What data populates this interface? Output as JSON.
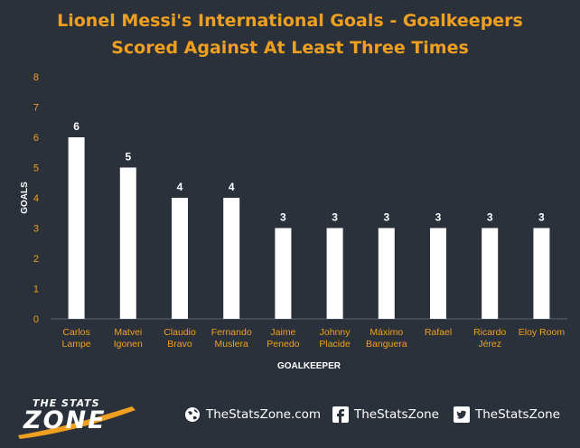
{
  "title_line1": "Lionel Messi's International Goals - Goalkeepers",
  "title_line2": "Scored Against At Least Three Times",
  "colors": {
    "background": "#2b313a",
    "title": "#f0a020",
    "bar": "#ffffff",
    "axis_text": "#f0a020"
  },
  "chart_data": {
    "type": "bar",
    "categories": [
      [
        "Carlos",
        "Lampe"
      ],
      [
        "Matvei",
        "Igonen"
      ],
      [
        "Claudio",
        "Bravo"
      ],
      [
        "Fernando",
        "Muslera"
      ],
      [
        "Jaime",
        "Penedo"
      ],
      [
        "Johnny",
        "Placide"
      ],
      [
        "Máximo",
        "Banguera"
      ],
      [
        "Rafael"
      ],
      [
        "Ricardo",
        "Jérez"
      ],
      [
        "Eloy Room"
      ]
    ],
    "values": [
      6,
      5,
      4,
      4,
      3,
      3,
      3,
      3,
      3,
      3
    ],
    "xlabel": "GOALKEEPER",
    "ylabel": "GOALS",
    "ylim": [
      0,
      8
    ],
    "yticks": [
      0,
      1,
      2,
      3,
      4,
      5,
      6,
      7,
      8
    ],
    "grid": false,
    "data_labels": true
  },
  "footer": {
    "logo_line1": "THE STATS",
    "logo_line2": "ZONE",
    "website": "TheStatsZone.com",
    "facebook": "TheStatsZone",
    "twitter": "TheStatsZone",
    "icons": [
      "globe-icon",
      "facebook-icon",
      "twitter-icon"
    ]
  }
}
